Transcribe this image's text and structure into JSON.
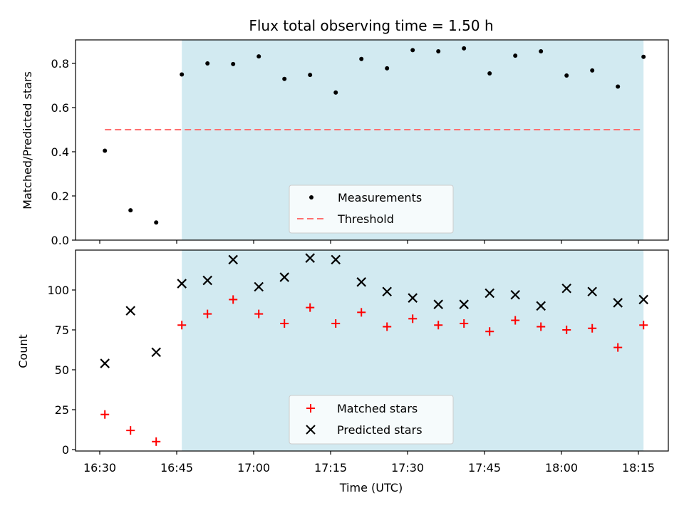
{
  "chart_data": [
    {
      "type": "scatter",
      "title": "Flux total observing time = 1.50 h",
      "ylabel": "Matched/Predicted stars",
      "xlabel": "",
      "ylim": [
        0,
        0.9
      ],
      "yticks": [
        "0.0",
        "0.2",
        "0.4",
        "0.6",
        "0.8"
      ],
      "x": [
        "16:31",
        "16:36",
        "16:41",
        "16:46",
        "16:51",
        "16:56",
        "17:01",
        "17:06",
        "17:11",
        "17:16",
        "17:21",
        "17:26",
        "17:31",
        "17:36",
        "17:41",
        "17:46",
        "17:51",
        "17:56",
        "18:01",
        "18:06",
        "18:11",
        "18:16"
      ],
      "series": [
        {
          "name": "Measurements",
          "marker": "dot",
          "color": "#000000",
          "values": [
            0.405,
            0.135,
            0.08,
            0.75,
            0.8,
            0.797,
            0.832,
            0.73,
            0.748,
            0.668,
            0.82,
            0.778,
            0.86,
            0.855,
            0.868,
            0.755,
            0.835,
            0.855,
            0.745,
            0.768,
            0.695,
            0.83
          ]
        },
        {
          "name": "Threshold",
          "style": "dashed",
          "color": "#ff7070",
          "x_range": [
            "16:31",
            "18:16"
          ],
          "value": 0.5
        }
      ],
      "shaded_region": {
        "x_start": "16:46",
        "x_end": "18:16",
        "color": "#add8e6"
      },
      "legend_position": "lower center"
    },
    {
      "type": "scatter",
      "title": "",
      "ylabel": "Count",
      "xlabel": "Time (UTC)",
      "ylim": [
        0,
        125
      ],
      "yticks": [
        "0",
        "25",
        "50",
        "75",
        "100"
      ],
      "xticks": [
        "16:30",
        "16:45",
        "17:00",
        "17:15",
        "17:30",
        "17:45",
        "18:00",
        "18:15"
      ],
      "x": [
        "16:31",
        "16:36",
        "16:41",
        "16:46",
        "16:51",
        "16:56",
        "17:01",
        "17:06",
        "17:11",
        "17:16",
        "17:21",
        "17:26",
        "17:31",
        "17:36",
        "17:41",
        "17:46",
        "17:51",
        "17:56",
        "18:01",
        "18:06",
        "18:11",
        "18:16"
      ],
      "series": [
        {
          "name": "Matched stars",
          "marker": "plus",
          "color": "#ff0000",
          "values": [
            22,
            12,
            5,
            78,
            85,
            94,
            85,
            79,
            89,
            79,
            86,
            77,
            82,
            78,
            79,
            74,
            81,
            77,
            75,
            76,
            64,
            78
          ]
        },
        {
          "name": "Predicted stars",
          "marker": "x",
          "color": "#000000",
          "values": [
            54,
            87,
            61,
            104,
            106,
            119,
            102,
            108,
            120,
            119,
            105,
            99,
            95,
            91,
            91,
            98,
            97,
            90,
            101,
            99,
            92,
            94
          ]
        }
      ],
      "shaded_region": {
        "x_start": "16:46",
        "x_end": "18:16",
        "color": "#add8e6"
      },
      "legend_position": "lower center"
    }
  ]
}
